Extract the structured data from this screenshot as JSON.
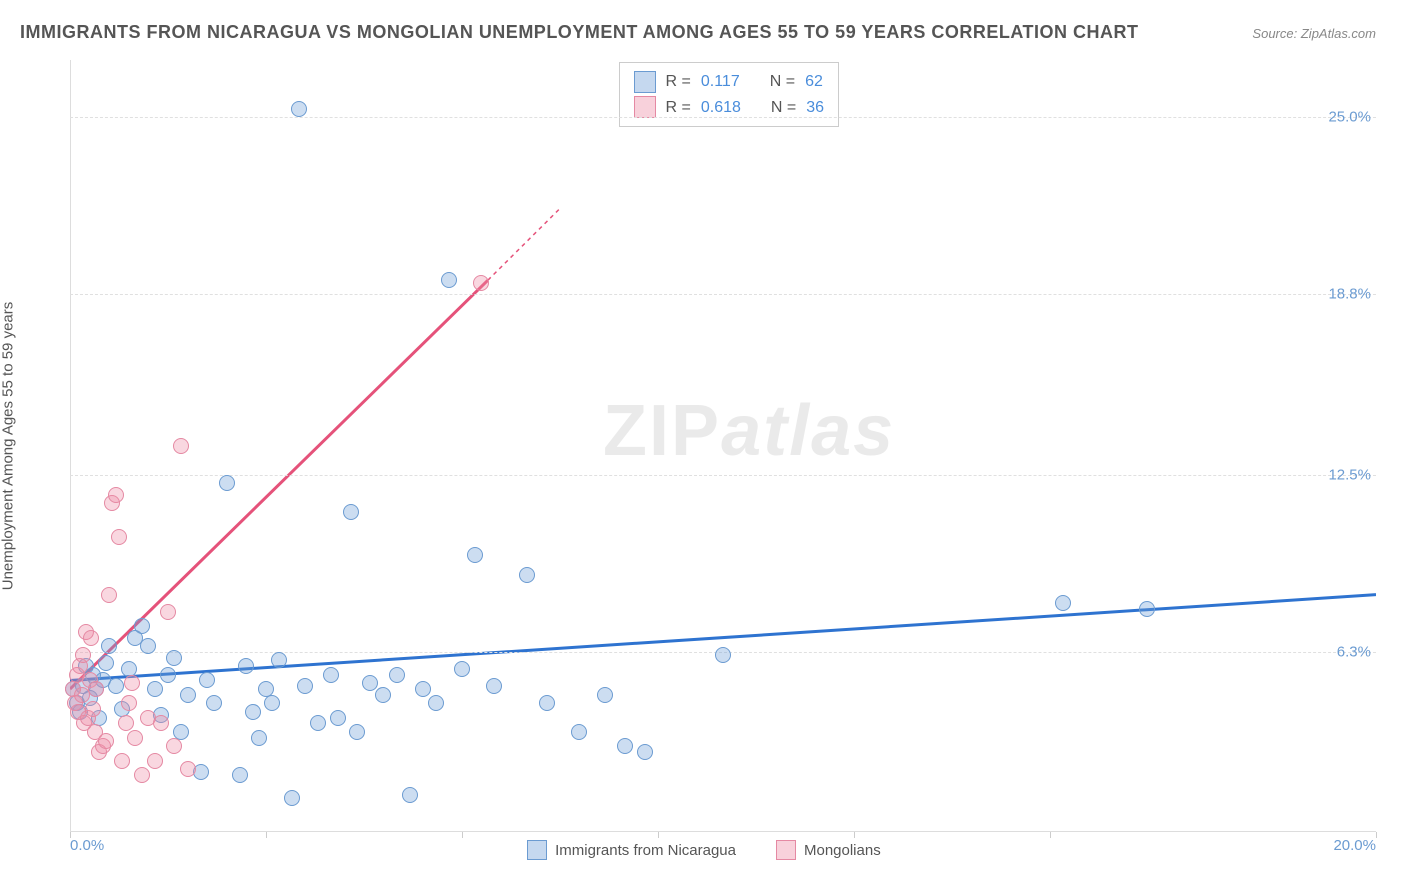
{
  "title": "IMMIGRANTS FROM NICARAGUA VS MONGOLIAN UNEMPLOYMENT AMONG AGES 55 TO 59 YEARS CORRELATION CHART",
  "source": {
    "label": "Source:",
    "link": "ZipAtlas.com"
  },
  "y_axis_label": "Unemployment Among Ages 55 to 59 years",
  "watermark": {
    "part1": "ZIP",
    "part2": "atlas"
  },
  "chart": {
    "type": "scatter",
    "xlim": [
      0,
      20
    ],
    "ylim": [
      0,
      27
    ],
    "x_ticks": [
      0,
      3,
      6,
      9,
      12,
      15,
      20
    ],
    "x_tick_labels": {
      "0": "0.0%",
      "20": "20.0%"
    },
    "y_ticks": [
      6.3,
      12.5,
      18.8,
      25.0
    ],
    "y_tick_labels": [
      "6.3%",
      "12.5%",
      "18.8%",
      "25.0%"
    ],
    "background_color": "#ffffff",
    "grid_color": "#e0e0e0",
    "series": [
      {
        "name": "Immigrants from Nicaragua",
        "color_fill": "rgba(109,158,216,0.35)",
        "color_stroke": "#6b9bd1",
        "marker_size": 16,
        "R": "0.117",
        "N": "62",
        "regression": {
          "x1": 0,
          "y1": 5.3,
          "x2": 20,
          "y2": 8.3,
          "color": "#2e73d0",
          "width": 3
        },
        "points": [
          [
            0.05,
            5.0
          ],
          [
            0.1,
            4.5
          ],
          [
            0.15,
            4.2
          ],
          [
            0.2,
            5.1
          ],
          [
            0.25,
            5.8
          ],
          [
            0.3,
            4.7
          ],
          [
            0.35,
            5.5
          ],
          [
            0.4,
            5.0
          ],
          [
            0.45,
            4.0
          ],
          [
            0.5,
            5.3
          ],
          [
            0.55,
            5.9
          ],
          [
            0.6,
            6.5
          ],
          [
            0.7,
            5.1
          ],
          [
            0.8,
            4.3
          ],
          [
            0.9,
            5.7
          ],
          [
            1.0,
            6.8
          ],
          [
            1.1,
            7.2
          ],
          [
            1.2,
            6.5
          ],
          [
            1.3,
            5.0
          ],
          [
            1.4,
            4.1
          ],
          [
            1.5,
            5.5
          ],
          [
            1.6,
            6.1
          ],
          [
            1.7,
            3.5
          ],
          [
            1.8,
            4.8
          ],
          [
            2.0,
            2.1
          ],
          [
            2.1,
            5.3
          ],
          [
            2.2,
            4.5
          ],
          [
            2.4,
            12.2
          ],
          [
            2.6,
            2.0
          ],
          [
            2.7,
            5.8
          ],
          [
            2.8,
            4.2
          ],
          [
            2.9,
            3.3
          ],
          [
            3.0,
            5.0
          ],
          [
            3.1,
            4.5
          ],
          [
            3.2,
            6.0
          ],
          [
            3.4,
            1.2
          ],
          [
            3.5,
            25.3
          ],
          [
            3.6,
            5.1
          ],
          [
            3.8,
            3.8
          ],
          [
            4.0,
            5.5
          ],
          [
            4.1,
            4.0
          ],
          [
            4.3,
            11.2
          ],
          [
            4.4,
            3.5
          ],
          [
            4.6,
            5.2
          ],
          [
            4.8,
            4.8
          ],
          [
            5.0,
            5.5
          ],
          [
            5.2,
            1.3
          ],
          [
            5.4,
            5.0
          ],
          [
            5.6,
            4.5
          ],
          [
            5.8,
            19.3
          ],
          [
            6.0,
            5.7
          ],
          [
            6.2,
            9.7
          ],
          [
            6.5,
            5.1
          ],
          [
            7.0,
            9.0
          ],
          [
            7.3,
            4.5
          ],
          [
            7.8,
            3.5
          ],
          [
            8.2,
            4.8
          ],
          [
            8.5,
            3.0
          ],
          [
            8.8,
            2.8
          ],
          [
            10.0,
            6.2
          ],
          [
            15.2,
            8.0
          ],
          [
            16.5,
            7.8
          ]
        ]
      },
      {
        "name": "Mongolians",
        "color_fill": "rgba(238,140,165,0.35)",
        "color_stroke": "#e589a3",
        "marker_size": 16,
        "R": "0.618",
        "N": "36",
        "regression": {
          "x1": 0,
          "y1": 5.0,
          "x2": 6.4,
          "y2": 19.3,
          "x3": 7.5,
          "y3": 21.8,
          "color": "#e5527a",
          "width": 3
        },
        "points": [
          [
            0.05,
            5.0
          ],
          [
            0.08,
            4.5
          ],
          [
            0.1,
            5.5
          ],
          [
            0.12,
            4.2
          ],
          [
            0.15,
            5.8
          ],
          [
            0.18,
            4.8
          ],
          [
            0.2,
            6.2
          ],
          [
            0.22,
            3.8
          ],
          [
            0.25,
            7.0
          ],
          [
            0.28,
            4.0
          ],
          [
            0.3,
            5.3
          ],
          [
            0.32,
            6.8
          ],
          [
            0.35,
            4.3
          ],
          [
            0.38,
            3.5
          ],
          [
            0.4,
            5.0
          ],
          [
            0.45,
            2.8
          ],
          [
            0.5,
            3.0
          ],
          [
            0.55,
            3.2
          ],
          [
            0.6,
            8.3
          ],
          [
            0.65,
            11.5
          ],
          [
            0.7,
            11.8
          ],
          [
            0.75,
            10.3
          ],
          [
            0.8,
            2.5
          ],
          [
            0.85,
            3.8
          ],
          [
            0.9,
            4.5
          ],
          [
            0.95,
            5.2
          ],
          [
            1.0,
            3.3
          ],
          [
            1.1,
            2.0
          ],
          [
            1.2,
            4.0
          ],
          [
            1.3,
            2.5
          ],
          [
            1.4,
            3.8
          ],
          [
            1.5,
            7.7
          ],
          [
            1.6,
            3.0
          ],
          [
            1.7,
            13.5
          ],
          [
            1.8,
            2.2
          ],
          [
            6.3,
            19.2
          ]
        ]
      }
    ]
  },
  "legend_top": {
    "R_label": "R  =",
    "N_label": "N  ="
  },
  "colors": {
    "blue_swatch_fill": "rgba(109,158,216,0.4)",
    "blue_swatch_border": "#6b9bd1",
    "pink_swatch_fill": "rgba(238,140,165,0.4)",
    "pink_swatch_border": "#e589a3",
    "tick_label": "#6b9bd1",
    "title": "#555555"
  }
}
